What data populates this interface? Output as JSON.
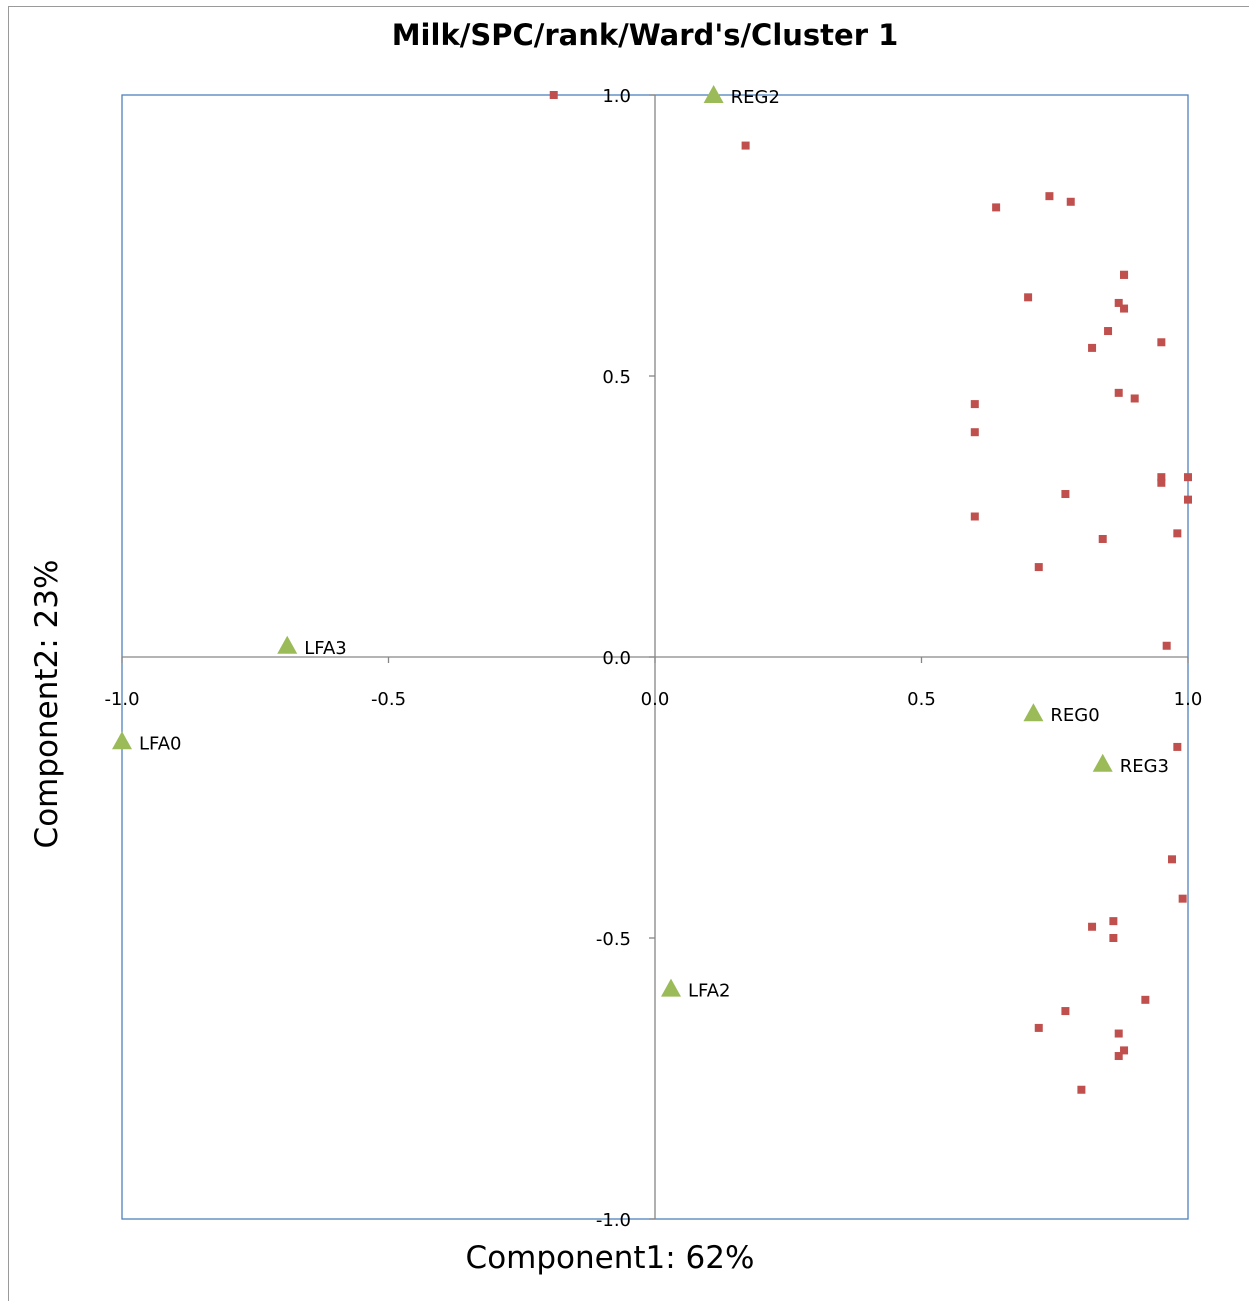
{
  "chart_data": {
    "type": "scatter",
    "title": "Milk/SPC/rank/Ward's/Cluster  1",
    "xlabel": "Component1: 62%",
    "ylabel": "Component2: 23%",
    "xlim": [
      -1.0,
      1.0
    ],
    "ylim": [
      -1.0,
      1.0
    ],
    "x_ticks": [
      "-1.0",
      "-0.5",
      "0.0",
      "0.5",
      "1.0"
    ],
    "y_ticks": [
      "-1.0",
      "-0.5",
      "0.0",
      "0.5",
      "1.0"
    ],
    "grid": false,
    "legend": "none",
    "colors": {
      "variables": "#c0504d",
      "samples": "#9bbb59",
      "plot_border": "#4f81bd",
      "axis_lines": "#868686"
    },
    "series": [
      {
        "marker": "square",
        "points": [
          [
            -0.19,
            1.0
          ],
          [
            0.17,
            0.91
          ],
          [
            0.64,
            0.8
          ],
          [
            0.74,
            0.82
          ],
          [
            0.78,
            0.81
          ],
          [
            0.88,
            0.68
          ],
          [
            0.88,
            0.68
          ],
          [
            0.7,
            0.64
          ],
          [
            0.87,
            0.63
          ],
          [
            0.88,
            0.62
          ],
          [
            0.85,
            0.58
          ],
          [
            0.82,
            0.55
          ],
          [
            0.95,
            0.56
          ],
          [
            0.87,
            0.47
          ],
          [
            0.9,
            0.46
          ],
          [
            0.6,
            0.45
          ],
          [
            0.6,
            0.4
          ],
          [
            0.95,
            0.32
          ],
          [
            0.95,
            0.31
          ],
          [
            1.0,
            0.32
          ],
          [
            0.77,
            0.29
          ],
          [
            1.0,
            0.28
          ],
          [
            0.6,
            0.25
          ],
          [
            0.84,
            0.21
          ],
          [
            0.98,
            0.22
          ],
          [
            0.72,
            0.16
          ],
          [
            0.96,
            0.02
          ],
          [
            0.98,
            -0.16
          ],
          [
            0.97,
            -0.36
          ],
          [
            0.99,
            -0.43
          ],
          [
            0.82,
            -0.48
          ],
          [
            0.86,
            -0.47
          ],
          [
            0.86,
            -0.5
          ],
          [
            0.92,
            -0.61
          ],
          [
            0.77,
            -0.63
          ],
          [
            0.72,
            -0.66
          ],
          [
            0.87,
            -0.67
          ],
          [
            0.88,
            -0.7
          ],
          [
            0.87,
            -0.71
          ],
          [
            0.8,
            -0.77
          ]
        ]
      },
      {
        "marker": "triangle",
        "points": [
          {
            "label": "REG2",
            "x": 0.11,
            "y": 1.0
          },
          {
            "label": "LFA3",
            "x": -0.69,
            "y": 0.02
          },
          {
            "label": "LFA0",
            "x": -1.0,
            "y": -0.15
          },
          {
            "label": "REG0",
            "x": 0.71,
            "y": -0.1
          },
          {
            "label": "REG3",
            "x": 0.84,
            "y": -0.19
          },
          {
            "label": "LFA2",
            "x": 0.03,
            "y": -0.59
          }
        ]
      }
    ]
  }
}
